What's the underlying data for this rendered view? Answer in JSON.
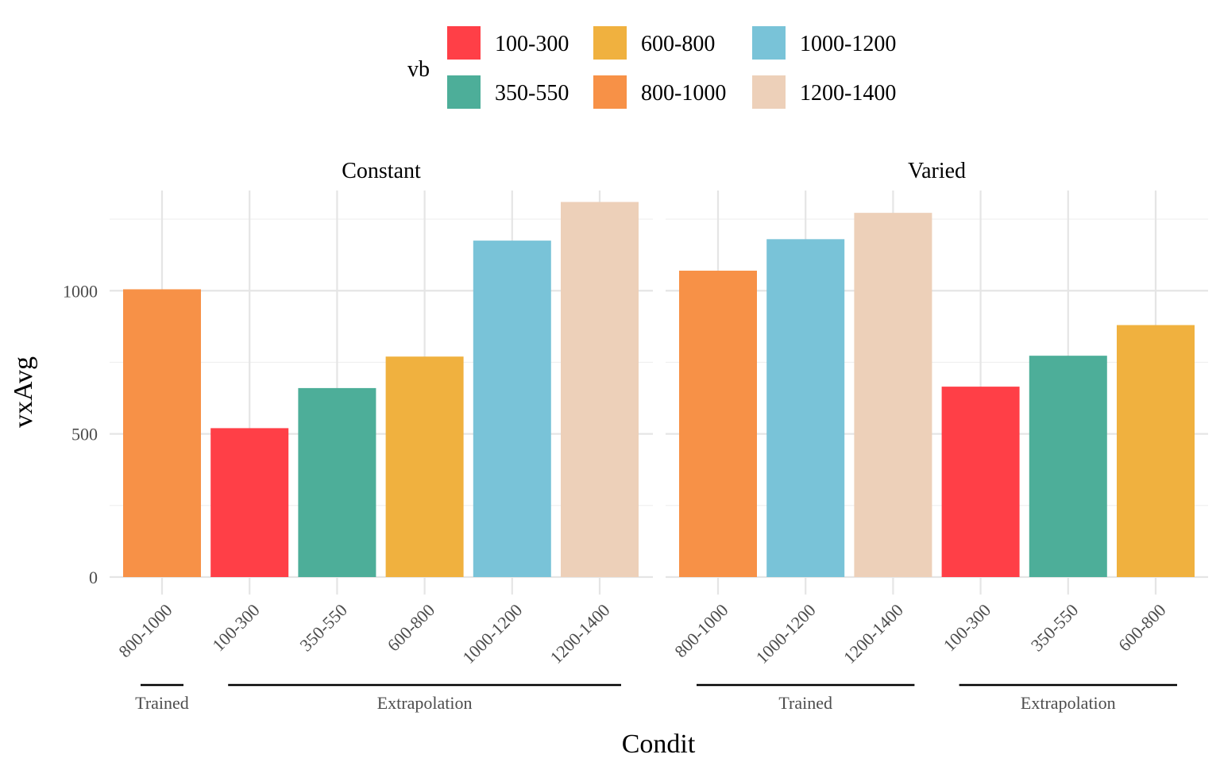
{
  "chart_data": {
    "type": "bar",
    "xlabel": "Condit",
    "ylabel": "vxAvg",
    "ylim": [
      0,
      1350
    ],
    "y_ticks": [
      0,
      500,
      1000
    ],
    "grid": true,
    "legend": {
      "title": "vb",
      "position": "top",
      "entries": [
        {
          "label": "100-300",
          "color": "#FF3F47"
        },
        {
          "label": "350-550",
          "color": "#4DAE99"
        },
        {
          "label": "600-800",
          "color": "#F0B13F"
        },
        {
          "label": "800-1000",
          "color": "#F79147"
        },
        {
          "label": "1000-1200",
          "color": "#79C3D8"
        },
        {
          "label": "1200-1400",
          "color": "#EDD0B9"
        }
      ]
    },
    "facets": [
      {
        "name": "Constant",
        "bars": [
          {
            "category": "800-1000",
            "value": 1005
          },
          {
            "category": "100-300",
            "value": 520
          },
          {
            "category": "350-550",
            "value": 660
          },
          {
            "category": "600-800",
            "value": 770
          },
          {
            "category": "1000-1200",
            "value": 1175
          },
          {
            "category": "1200-1400",
            "value": 1310
          }
        ],
        "groups": [
          {
            "label": "Trained",
            "start": 0,
            "end": 0
          },
          {
            "label": "Extrapolation",
            "start": 1,
            "end": 5
          }
        ]
      },
      {
        "name": "Varied",
        "bars": [
          {
            "category": "800-1000",
            "value": 1070
          },
          {
            "category": "1000-1200",
            "value": 1180
          },
          {
            "category": "1200-1400",
            "value": 1272
          },
          {
            "category": "100-300",
            "value": 665
          },
          {
            "category": "350-550",
            "value": 773
          },
          {
            "category": "600-800",
            "value": 880
          }
        ],
        "groups": [
          {
            "label": "Trained",
            "start": 0,
            "end": 2
          },
          {
            "label": "Extrapolation",
            "start": 3,
            "end": 5
          }
        ]
      }
    ]
  }
}
